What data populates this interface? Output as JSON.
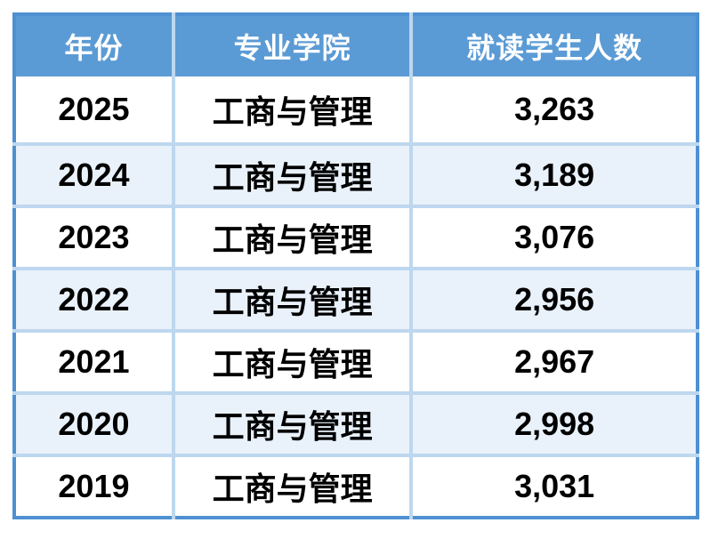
{
  "colors": {
    "header_bg": "#5B9BD5",
    "header_text": "#FFFFFF",
    "outer_border": "#4E90D2",
    "gridline": "#BDD7EE",
    "row_alt_bg": "#E9F1FA",
    "row_bg": "#FFFFFF",
    "cell_text": "#000000"
  },
  "table": {
    "headers": [
      "年份",
      "专业学院",
      "就读学生人数"
    ],
    "rows": [
      [
        "2025",
        "工商与管理",
        "3,263"
      ],
      [
        "2024",
        "工商与管理",
        "3,189"
      ],
      [
        "2023",
        "工商与管理",
        "3,076"
      ],
      [
        "2022",
        "工商与管理",
        "2,956"
      ],
      [
        "2021",
        "工商与管理",
        "2,967"
      ],
      [
        "2020",
        "工商与管理",
        "2,998"
      ],
      [
        "2019",
        "工商与管理",
        "3,031"
      ]
    ]
  },
  "chart_data": {
    "type": "table",
    "title": "",
    "columns": [
      "年份",
      "专业学院",
      "就读学生人数"
    ],
    "rows": [
      [
        "2025",
        "工商与管理",
        "3,263"
      ],
      [
        "2024",
        "工商与管理",
        "3,189"
      ],
      [
        "2023",
        "工商与管理",
        "3,076"
      ],
      [
        "2022",
        "工商与管理",
        "2,956"
      ],
      [
        "2021",
        "工商与管理",
        "2,967"
      ],
      [
        "2020",
        "工商与管理",
        "2,998"
      ],
      [
        "2019",
        "工商与管理",
        "3,031"
      ]
    ],
    "series": [
      {
        "name": "就读学生人数",
        "x": [
          2025,
          2024,
          2023,
          2022,
          2021,
          2020,
          2019
        ],
        "values": [
          3263,
          3189,
          3076,
          2956,
          2967,
          2998,
          3031
        ]
      }
    ]
  }
}
